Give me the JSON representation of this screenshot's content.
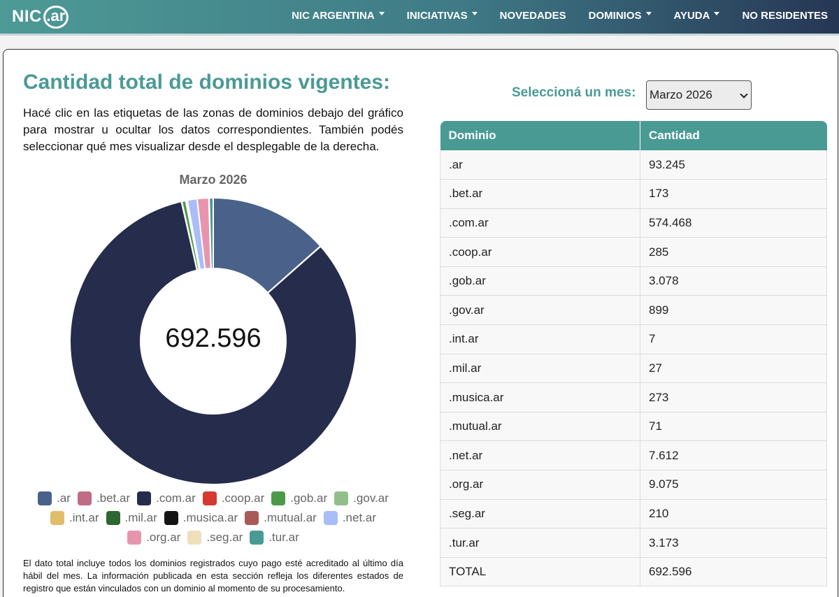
{
  "brand": {
    "nic": "NIC",
    "ar": ".ar"
  },
  "nav": [
    {
      "label": "NIC ARGENTINA",
      "dropdown": true
    },
    {
      "label": "INICIATIVAS",
      "dropdown": true
    },
    {
      "label": "NOVEDADES",
      "dropdown": false
    },
    {
      "label": "DOMINIOS",
      "dropdown": true
    },
    {
      "label": "AYUDA",
      "dropdown": true
    },
    {
      "label": "NO RESIDENTES",
      "dropdown": false
    }
  ],
  "page": {
    "title": "Cantidad total de dominios vigentes:",
    "intro": "Hacé clic en las etiquetas de las zonas de dominios debajo del gráfico para mostrar u ocultar los datos correspondientes. También podés seleccionar qué mes visualizar desde el desplegable de la derecha.",
    "footnote": "El dato total incluye todos los dominios registrados cuyo pago esté acreditado al último día hábil del mes. La información publicada en esta sección refleja los diferentes estados de registro que están vinculados con un dominio al momento de su procesamiento."
  },
  "selector": {
    "label": "Seleccioná un mes:",
    "value": "Marzo 2026"
  },
  "table": {
    "headers": [
      "Dominio",
      "Cantidad"
    ],
    "rows": [
      [
        ".ar",
        "93.245"
      ],
      [
        ".bet.ar",
        "173"
      ],
      [
        ".com.ar",
        "574.468"
      ],
      [
        ".coop.ar",
        "285"
      ],
      [
        ".gob.ar",
        "3.078"
      ],
      [
        ".gov.ar",
        "899"
      ],
      [
        ".int.ar",
        "7"
      ],
      [
        ".mil.ar",
        "27"
      ],
      [
        ".musica.ar",
        "273"
      ],
      [
        ".mutual.ar",
        "71"
      ],
      [
        ".net.ar",
        "7.612"
      ],
      [
        ".org.ar",
        "9.075"
      ],
      [
        ".seg.ar",
        "210"
      ],
      [
        ".tur.ar",
        "3.173"
      ],
      [
        "TOTAL",
        "692.596"
      ]
    ]
  },
  "chart_data": {
    "type": "pie",
    "title": "Marzo 2026",
    "center_label": "692.596",
    "legend_position": "bottom",
    "categories": [
      ".ar",
      ".bet.ar",
      ".com.ar",
      ".coop.ar",
      ".gob.ar",
      ".gov.ar",
      ".int.ar",
      ".mil.ar",
      ".musica.ar",
      ".mutual.ar",
      ".net.ar",
      ".org.ar",
      ".seg.ar",
      ".tur.ar"
    ],
    "values": [
      93245,
      173,
      574468,
      285,
      3078,
      899,
      7,
      27,
      273,
      71,
      7612,
      9075,
      210,
      3173
    ],
    "colors": [
      "#4a618a",
      "#c06c84",
      "#252c4c",
      "#d43a2f",
      "#4c9a49",
      "#91bf8a",
      "#e1bd6a",
      "#2e6630",
      "#141414",
      "#a85a59",
      "#a9bdf9",
      "#e795ad",
      "#ede0bb",
      "#4a9a94"
    ],
    "legend_rows": [
      [
        0,
        1,
        2,
        3,
        4,
        5
      ],
      [
        6,
        7,
        8,
        9,
        10
      ],
      [
        11,
        12,
        13
      ]
    ]
  }
}
